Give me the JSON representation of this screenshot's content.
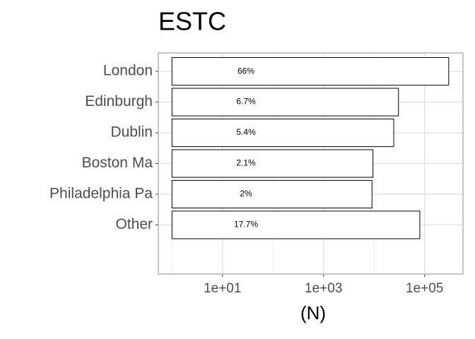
{
  "chart_data": {
    "type": "bar",
    "orientation": "horizontal",
    "title": "ESTC",
    "x_label": "(N)",
    "categories": [
      "London",
      "Edinburgh",
      "Dublin",
      "Boston Ma",
      "Philadelphia Pa",
      "Other"
    ],
    "values": [
      300000,
      30400,
      24500,
      9500,
      9100,
      80400
    ],
    "percent_labels": [
      "66%",
      "6.7%",
      "5.4%",
      "2.1%",
      "2%",
      "17.7%"
    ],
    "color": "#ffffff",
    "edge_color": "#000000",
    "x_log_scale": true,
    "xlim": [
      0.537,
      575000
    ],
    "xticks": [
      {
        "value": 10,
        "label": "1e+01"
      },
      {
        "value": 1000,
        "label": "1e+03"
      },
      {
        "value": 100000,
        "label": "1e+05"
      }
    ],
    "minor_xticks": [
      1,
      100,
      10000
    ],
    "grid": true
  }
}
